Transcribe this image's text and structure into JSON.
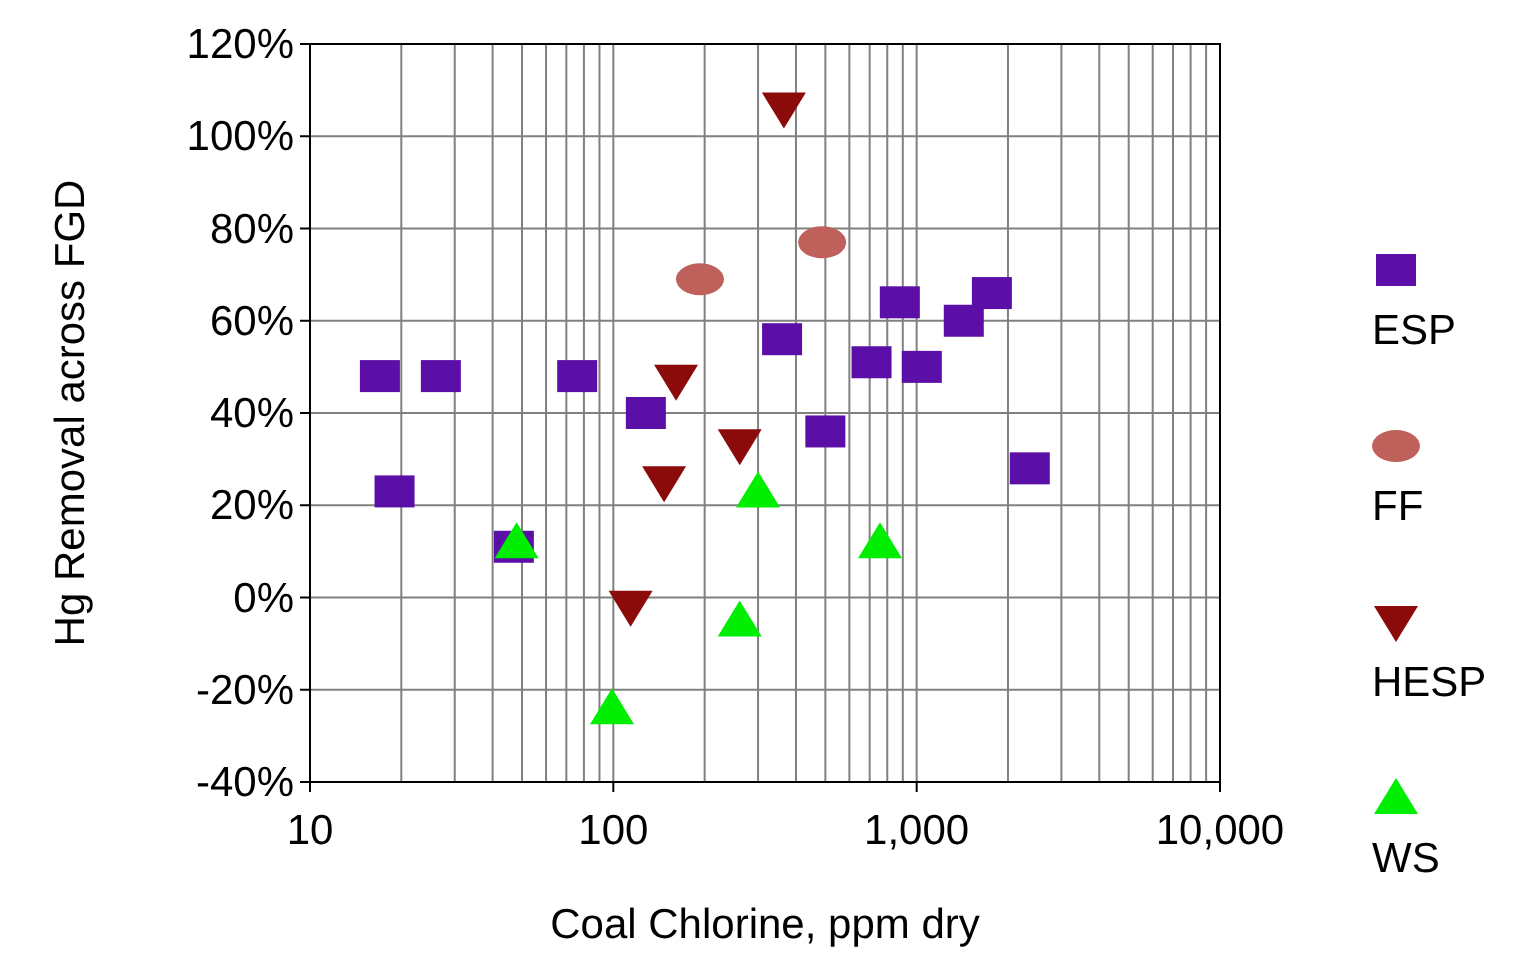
{
  "chart_data": {
    "type": "scatter",
    "xlabel": "Coal Chlorine, ppm dry",
    "ylabel": "Hg Removal across FGD",
    "log": "x",
    "grid": true,
    "legend": "right",
    "xlim": [
      10,
      10000
    ],
    "xticks": [
      10,
      100,
      {
        "value": 1000,
        "label": "1,000"
      },
      {
        "value": 10000,
        "label": "10,000"
      }
    ],
    "ylim": [
      -40,
      120
    ],
    "yticks": [
      {
        "value": -40,
        "label": "-40%"
      },
      {
        "value": -20,
        "label": "-20%"
      },
      {
        "value": 0,
        "label": "0%"
      },
      {
        "value": 20,
        "label": "20%"
      },
      {
        "value": 40,
        "label": "40%"
      },
      {
        "value": 60,
        "label": "60%"
      },
      {
        "value": 80,
        "label": "80%"
      },
      {
        "value": 100,
        "label": "100%"
      },
      {
        "value": 120,
        "label": "120%"
      }
    ],
    "series": [
      {
        "name": "ESP",
        "color": "#5c0fa6",
        "marker": "square",
        "x": [
          17,
          19,
          27,
          47,
          76,
          128,
          360,
          500,
          710,
          880,
          1040,
          1430,
          1770,
          2360
        ],
        "values": [
          48,
          23,
          48,
          11,
          48,
          40,
          56,
          36,
          51,
          64,
          50,
          60,
          66,
          28
        ]
      },
      {
        "name": "FF",
        "color": "#c0605a",
        "marker": "circle",
        "x": [
          193,
          488
        ],
        "values": [
          69,
          77
        ]
      },
      {
        "name": "HESP",
        "color": "#8b0a0a",
        "marker": "triangle-down",
        "x": [
          365,
          161,
          147,
          114,
          261
        ],
        "values": [
          106,
          47,
          25,
          -2,
          33
        ]
      },
      {
        "name": "WS",
        "color": "#00ee00",
        "marker": "triangle",
        "x": [
          48,
          99,
          261,
          300,
          757
        ],
        "values": [
          12,
          -24,
          -5,
          23,
          12
        ]
      }
    ]
  }
}
